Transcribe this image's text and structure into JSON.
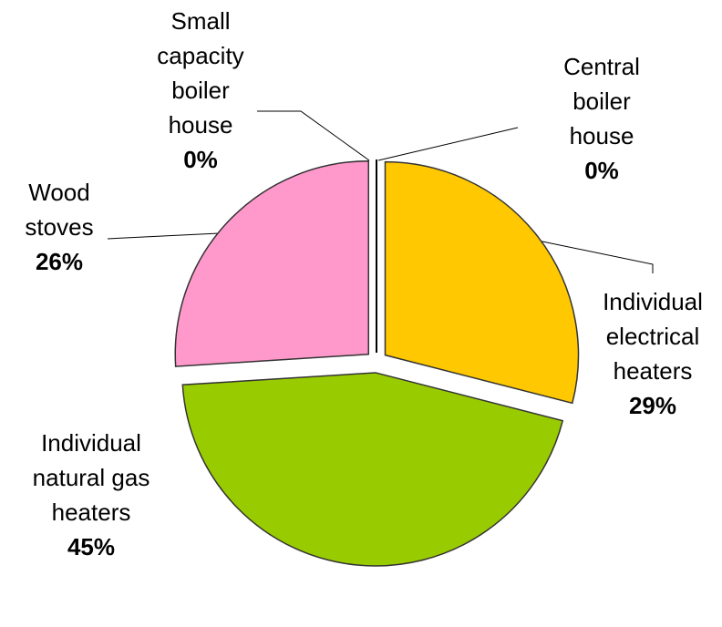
{
  "chart_data": {
    "type": "pie",
    "categories": [
      "Central boiler house",
      "Individual electrical heaters",
      "Individual natural gas heaters",
      "Wood stoves",
      "Small capacity boiler house"
    ],
    "values": [
      0,
      29,
      45,
      26,
      0
    ],
    "value_labels": [
      "0%",
      "29%",
      "45%",
      "26%",
      "0%"
    ],
    "colors": [
      "#FFCC00",
      "#FFC800",
      "#99CC00",
      "#FF99CC",
      "#FF99CC"
    ]
  }
}
